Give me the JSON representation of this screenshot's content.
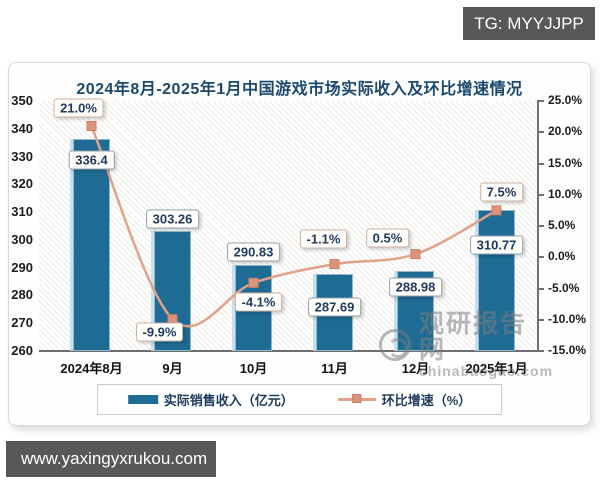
{
  "overlay": {
    "tg_label": "TG: MYYJJPP",
    "website": "www.yaxingyxrukou.com"
  },
  "watermark": {
    "cn": "观研报告网",
    "en": "chinabaogao.com"
  },
  "chart_data": {
    "type": "bar",
    "combo": "bar+line",
    "title": "2024年8月-2025年1月中国游戏市场实际收入及环比增速情况",
    "categories": [
      "2024年8月",
      "9月",
      "10月",
      "11月",
      "12月",
      "2025年1月"
    ],
    "series": [
      {
        "name": "实际销售收入（亿元）",
        "type": "bar",
        "axis": "left",
        "values": [
          336.4,
          303.26,
          290.83,
          287.69,
          288.98,
          310.77
        ]
      },
      {
        "name": "环比增速（%）",
        "type": "line",
        "axis": "right",
        "values": [
          21.0,
          -9.9,
          -4.1,
          -1.1,
          0.5,
          7.5
        ]
      }
    ],
    "left_axis": {
      "min": 260,
      "max": 350,
      "step": 10
    },
    "right_axis": {
      "min": -15,
      "max": 25,
      "step": 5,
      "format": "percent"
    },
    "legend_position": "bottom",
    "grid": false,
    "colors": {
      "bar": "#1e6b94",
      "line": "#e2a188",
      "marker": "#dd9478",
      "marker_border": "#c97f63"
    }
  }
}
